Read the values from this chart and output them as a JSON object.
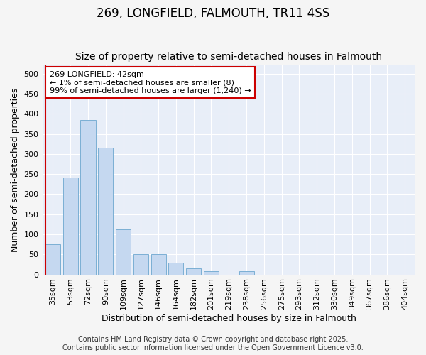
{
  "title_line1": "269, LONGFIELD, FALMOUTH, TR11 4SS",
  "title_line2": "Size of property relative to semi-detached houses in Falmouth",
  "xlabel": "Distribution of semi-detached houses by size in Falmouth",
  "ylabel": "Number of semi-detached properties",
  "categories": [
    "35sqm",
    "53sqm",
    "72sqm",
    "90sqm",
    "109sqm",
    "127sqm",
    "146sqm",
    "164sqm",
    "182sqm",
    "201sqm",
    "219sqm",
    "238sqm",
    "256sqm",
    "275sqm",
    "293sqm",
    "312sqm",
    "330sqm",
    "349sqm",
    "367sqm",
    "386sqm",
    "404sqm"
  ],
  "values": [
    75,
    242,
    385,
    315,
    113,
    50,
    50,
    30,
    15,
    8,
    0,
    8,
    0,
    0,
    0,
    0,
    0,
    0,
    0,
    0,
    0
  ],
  "bar_color": "#c5d8f0",
  "bar_edge_color": "#7bafd4",
  "annotation_line1": "269 LONGFIELD: 42sqm",
  "annotation_line2": "← 1% of semi-detached houses are smaller (8)",
  "annotation_line3": "99% of semi-detached houses are larger (1,240) →",
  "annotation_box_color": "#ffffff",
  "annotation_box_edge_color": "#cc0000",
  "red_line_color": "#cc0000",
  "ylim": [
    0,
    520
  ],
  "yticks": [
    0,
    50,
    100,
    150,
    200,
    250,
    300,
    350,
    400,
    450,
    500
  ],
  "background_color": "#f5f5f5",
  "plot_bg_color": "#e8eef8",
  "grid_color": "#ffffff",
  "title_fontsize": 12,
  "subtitle_fontsize": 10,
  "axis_label_fontsize": 9,
  "tick_fontsize": 8,
  "annotation_fontsize": 8,
  "footer_fontsize": 7,
  "footer_line1": "Contains HM Land Registry data © Crown copyright and database right 2025.",
  "footer_line2": "Contains public sector information licensed under the Open Government Licence v3.0."
}
